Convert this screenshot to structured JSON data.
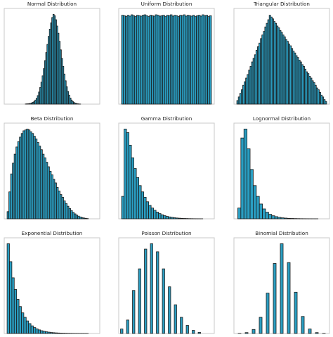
{
  "style": {
    "bar_color": "#2a9ec2",
    "edge_color": "#1a1a1a",
    "frame_color": "#c8c8c8"
  },
  "chart_data": [
    {
      "type": "bar",
      "title": "Normal Distribution",
      "xlabel": "",
      "ylabel": "",
      "grid": false,
      "ylim": [
        0,
        1.05
      ],
      "values": [
        0.002,
        0.003,
        0.004,
        0.006,
        0.009,
        0.014,
        0.02,
        0.03,
        0.045,
        0.065,
        0.095,
        0.135,
        0.185,
        0.245,
        0.315,
        0.395,
        0.485,
        0.575,
        0.665,
        0.755,
        0.835,
        0.905,
        0.965,
        1.0,
        0.985,
        0.94,
        0.87,
        0.79,
        0.7,
        0.605,
        0.51,
        0.42,
        0.335,
        0.26,
        0.195,
        0.142,
        0.1,
        0.068,
        0.045,
        0.029,
        0.018,
        0.011,
        0.007,
        0.004,
        0.002,
        0.001
      ]
    },
    {
      "type": "bar",
      "title": "Uniform Distribution",
      "xlabel": "",
      "ylabel": "",
      "grid": false,
      "ylim": [
        0,
        1.05
      ],
      "values": [
        0.99,
        0.985,
        0.975,
        0.99,
        0.98,
        0.995,
        0.985,
        0.975,
        0.99,
        0.985,
        0.98,
        0.99,
        0.995,
        0.985,
        0.975,
        0.99,
        0.985,
        0.98,
        0.995,
        0.99,
        0.98,
        0.985,
        0.99,
        0.975,
        0.99,
        0.985,
        0.995,
        0.98,
        0.99,
        0.985,
        0.975,
        0.99,
        0.985,
        0.995,
        0.98,
        0.99,
        0.985,
        0.98,
        0.99,
        0.975,
        0.985,
        0.99,
        0.98,
        0.995,
        0.985,
        0.99,
        0.975,
        0.985
      ]
    },
    {
      "type": "bar",
      "title": "Triangular Distribution",
      "xlabel": "",
      "ylabel": "",
      "grid": false,
      "ylim": [
        0,
        1.05
      ],
      "values": [
        0.04,
        0.08,
        0.12,
        0.16,
        0.21,
        0.25,
        0.29,
        0.33,
        0.38,
        0.42,
        0.47,
        0.51,
        0.55,
        0.6,
        0.64,
        0.68,
        0.73,
        0.77,
        0.81,
        0.86,
        0.9,
        0.94,
        0.99,
        0.97,
        0.95,
        0.92,
        0.9,
        0.87,
        0.85,
        0.82,
        0.8,
        0.77,
        0.75,
        0.72,
        0.7,
        0.67,
        0.65,
        0.62,
        0.59,
        0.57,
        0.54,
        0.52,
        0.49,
        0.47,
        0.44,
        0.42,
        0.39,
        0.36,
        0.34,
        0.31,
        0.29,
        0.26,
        0.24,
        0.21,
        0.18,
        0.16,
        0.13,
        0.1,
        0.08,
        0.05,
        0.03
      ]
    },
    {
      "type": "bar",
      "title": "Beta Distribution",
      "xlabel": "",
      "ylabel": "",
      "grid": false,
      "ylim": [
        0,
        1.05
      ],
      "values": [
        0.08,
        0.3,
        0.5,
        0.62,
        0.72,
        0.8,
        0.86,
        0.91,
        0.95,
        0.98,
        0.99,
        1.0,
        0.99,
        0.97,
        0.95,
        0.92,
        0.89,
        0.85,
        0.81,
        0.77,
        0.72,
        0.68,
        0.63,
        0.58,
        0.53,
        0.49,
        0.44,
        0.4,
        0.35,
        0.31,
        0.27,
        0.24,
        0.2,
        0.17,
        0.14,
        0.115,
        0.092,
        0.072,
        0.055,
        0.041,
        0.03,
        0.021,
        0.014,
        0.009,
        0.006,
        0.003
      ]
    },
    {
      "type": "bar",
      "title": "Gamma Distribution",
      "xlabel": "",
      "ylabel": "",
      "grid": false,
      "ylim": [
        0,
        1.05
      ],
      "values": [
        0.25,
        1.0,
        0.96,
        0.82,
        0.68,
        0.56,
        0.46,
        0.37,
        0.3,
        0.24,
        0.19,
        0.15,
        0.12,
        0.095,
        0.075,
        0.058,
        0.045,
        0.035,
        0.027,
        0.021,
        0.016,
        0.012,
        0.009,
        0.007,
        0.005,
        0.004,
        0.003,
        0.002,
        0.0015,
        0.001,
        0.0008,
        0.0006,
        0.0004
      ]
    },
    {
      "type": "bar",
      "title": "Lognormal Distribution",
      "xlabel": "",
      "ylabel": "",
      "grid": false,
      "ylim": [
        0,
        1.05
      ],
      "values": [
        0.12,
        0.9,
        1.0,
        0.78,
        0.55,
        0.37,
        0.25,
        0.165,
        0.11,
        0.074,
        0.05,
        0.034,
        0.024,
        0.016,
        0.011,
        0.008,
        0.0055,
        0.004,
        0.0028,
        0.002,
        0.0014,
        0.001,
        0.0007,
        0.0005,
        0.0003,
        0.0002
      ]
    },
    {
      "type": "bar",
      "title": "Exponential Distribution",
      "xlabel": "",
      "ylabel": "",
      "grid": false,
      "ylim": [
        0,
        1.05
      ],
      "values": [
        1.0,
        0.8,
        0.62,
        0.49,
        0.38,
        0.3,
        0.23,
        0.18,
        0.14,
        0.11,
        0.085,
        0.066,
        0.051,
        0.04,
        0.031,
        0.024,
        0.019,
        0.015,
        0.011,
        0.009,
        0.007,
        0.0055,
        0.0042,
        0.0033,
        0.0026,
        0.002,
        0.0015,
        0.0012,
        0.0009,
        0.0007,
        0.0005,
        0.0004,
        0.0003,
        0.0002
      ]
    },
    {
      "type": "bar",
      "title": "Poisson Distribution",
      "xlabel": "",
      "ylabel": "",
      "grid": false,
      "ylim": [
        0,
        1.05
      ],
      "values": [
        0.05,
        0.15,
        0.48,
        0.72,
        0.94,
        1.0,
        0.91,
        0.72,
        0.52,
        0.32,
        0.18,
        0.09,
        0.035,
        0.013
      ],
      "positions": [
        0,
        1,
        2,
        3,
        4,
        5,
        6,
        7,
        8,
        9,
        10,
        11,
        12,
        13
      ],
      "x_range": [
        -0.5,
        15.5
      ]
    },
    {
      "type": "bar",
      "title": "Binomial Distribution",
      "xlabel": "",
      "ylabel": "",
      "grid": false,
      "ylim": [
        0,
        1.05
      ],
      "values": [
        0.001,
        0.01,
        0.045,
        0.18,
        0.45,
        0.78,
        1.0,
        0.79,
        0.46,
        0.19,
        0.05,
        0.01,
        0.001
      ],
      "positions": [
        0,
        1,
        2,
        3,
        4,
        5,
        6,
        7,
        8,
        9,
        10,
        11,
        12
      ],
      "x_range": [
        -0.8,
        12.8
      ]
    }
  ]
}
